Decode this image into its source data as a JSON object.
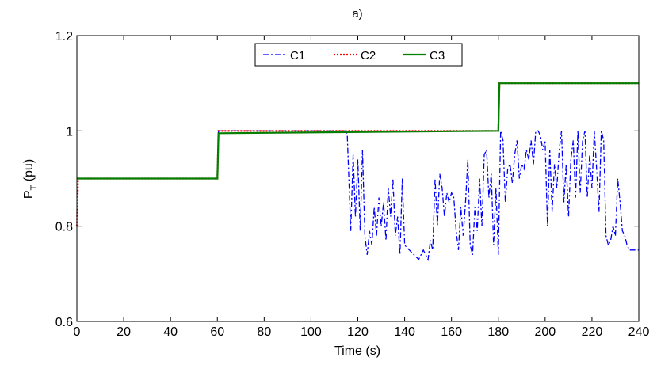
{
  "chart_data": {
    "type": "line",
    "title": "a)",
    "xlabel": "Time (s)",
    "ylabel_main": "P",
    "ylabel_sub": "T",
    "ylabel_unit": " (pu)",
    "xlim": [
      0,
      240
    ],
    "ylim": [
      0.6,
      1.2
    ],
    "xticks": [
      0,
      20,
      40,
      60,
      80,
      100,
      120,
      140,
      160,
      180,
      200,
      220,
      240
    ],
    "yticks": [
      0.6,
      0.8,
      1,
      1.2
    ],
    "ytick_labels": [
      "0.6",
      "0.8",
      "1",
      "1.2"
    ],
    "grid": false,
    "legend_position": "top-center",
    "series": [
      {
        "name": "C1",
        "color": "#0000ff",
        "style": "dashdot",
        "x": [
          0,
          60,
          60.5,
          115,
          115.5,
          117,
          118,
          119,
          120,
          121,
          122,
          123,
          124,
          125,
          126,
          127,
          128,
          129,
          130,
          131,
          132,
          133,
          134,
          135,
          136,
          137,
          138,
          139,
          140,
          142,
          144,
          146,
          148,
          150,
          151,
          152,
          153,
          154,
          155,
          156,
          157,
          158,
          159,
          160,
          161,
          162,
          163,
          164,
          165,
          166,
          167,
          168,
          169,
          170,
          171,
          172,
          173,
          174,
          175,
          176,
          177,
          178,
          179,
          180,
          181,
          182,
          183,
          184,
          185,
          186,
          187,
          188,
          189,
          190,
          191,
          192,
          193,
          194,
          195,
          196,
          197,
          198,
          199,
          200,
          201,
          202,
          203,
          204,
          205,
          206,
          207,
          208,
          209,
          210,
          211,
          212,
          213,
          214,
          215,
          216,
          217,
          218,
          219,
          220,
          221,
          222,
          223,
          224,
          225,
          226,
          227,
          228,
          229,
          230,
          231,
          232,
          233,
          234,
          235,
          236,
          238,
          240
        ],
        "y": [
          0.9,
          0.9,
          1.0,
          1.0,
          0.99,
          0.79,
          0.95,
          0.82,
          0.94,
          0.79,
          0.96,
          0.78,
          0.74,
          0.79,
          0.76,
          0.84,
          0.78,
          0.86,
          0.8,
          0.85,
          0.77,
          0.88,
          0.82,
          0.9,
          0.78,
          0.82,
          0.74,
          0.9,
          0.76,
          0.75,
          0.74,
          0.73,
          0.75,
          0.73,
          0.77,
          0.75,
          0.9,
          0.8,
          0.91,
          0.88,
          0.82,
          0.87,
          0.85,
          0.87,
          0.86,
          0.79,
          0.75,
          0.84,
          0.78,
          0.85,
          0.94,
          0.76,
          0.74,
          0.84,
          0.79,
          0.9,
          0.8,
          0.95,
          0.96,
          0.86,
          0.91,
          0.76,
          0.88,
          0.74,
          1.0,
          0.98,
          0.85,
          0.92,
          0.93,
          0.89,
          0.95,
          0.98,
          0.9,
          0.93,
          0.92,
          0.96,
          0.94,
          0.98,
          0.93,
          1.0,
          1.0,
          0.99,
          0.96,
          0.98,
          0.8,
          0.96,
          0.83,
          0.93,
          0.88,
          0.96,
          1.0,
          0.85,
          0.93,
          0.82,
          0.94,
          0.98,
          0.86,
          1.0,
          0.87,
          0.98,
          1.0,
          0.86,
          0.95,
          0.88,
          1.0,
          0.92,
          0.83,
          1.0,
          0.98,
          0.78,
          0.76,
          0.77,
          0.8,
          0.78,
          0.9,
          0.85,
          0.79,
          0.78,
          0.76,
          0.75,
          0.75,
          0.75
        ]
      },
      {
        "name": "C2",
        "color": "#ff0000",
        "style": "dotted",
        "x": [
          0,
          0.5,
          1,
          60,
          60.5,
          180,
          180.5,
          240
        ],
        "y": [
          0.8,
          0.9,
          0.9,
          0.9,
          1.0,
          1.0,
          1.1,
          1.1
        ]
      },
      {
        "name": "C3",
        "color": "#007f00",
        "style": "solid",
        "x": [
          0,
          60,
          60.5,
          180,
          180.5,
          240
        ],
        "y": [
          0.9,
          0.9,
          0.995,
          1.0,
          1.1,
          1.1
        ]
      }
    ]
  }
}
